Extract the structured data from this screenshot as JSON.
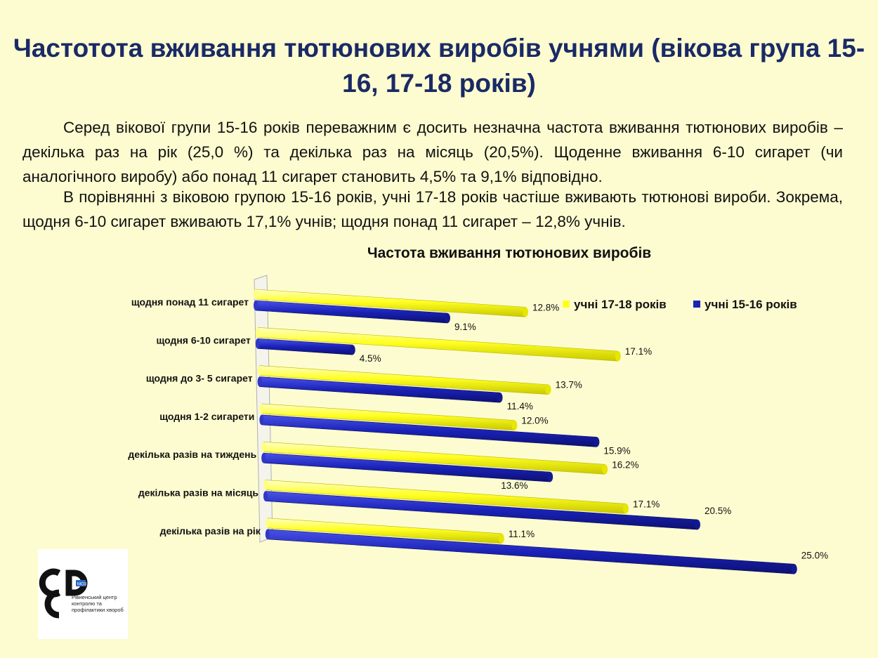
{
  "title": "Частотота вживання тютюнових виробів учнями (вікова група 15-16, 17-18 років)",
  "paragraphs": [
    "Серед вікової групи 15-16 років переважним є досить незначна частота вживання тютюнових виробів – декілька раз на рік (25,0 %) та декілька раз на місяць (20,5%). Щоденне вживання 6-10 сигарет (чи аналогічного виробу) або понад 11 сигарет становить 4,5% та 9,1% відповідно.",
    "В порівнянні з віковою групою 15-16 років, учні 17-18 років частіше вживають тютюнові вироби. Зокрема, щодня 6-10 сигарет вживають 17,1% учнів; щодня понад 11 сигарет – 12,8% учнів."
  ],
  "logo": {
    "text": "Рівненський центр контролю та профілактики хвороб",
    "badge": "МОЗ"
  },
  "colors": {
    "yellow": "#ffff22",
    "blue": "#1a22b8",
    "title": "#1a2a66"
  },
  "chart_data": {
    "type": "bar",
    "orientation": "horizontal",
    "title": "Частота вживання тютюнових виробів",
    "categories": [
      "щодня понад 11 сигарет",
      "щодня 6-10 сигарет",
      "щодня до 3- 5 сигарет",
      "щодня 1-2 сигарети",
      "декілька разів на тиждень",
      "декілька разів на місяць",
      "декілька разів на рік"
    ],
    "series": [
      {
        "name": "учні 17-18 років",
        "color": "#ffff22",
        "values": [
          12.8,
          17.1,
          13.7,
          12.0,
          16.2,
          17.1,
          11.1
        ],
        "labels": [
          "12.8%",
          "17.1%",
          "13.7%",
          "12.0%",
          "16.2%",
          "17.1%",
          "11.1%"
        ]
      },
      {
        "name": "учні 15-16 років",
        "color": "#1a22b8",
        "values": [
          9.1,
          4.5,
          11.4,
          15.9,
          13.6,
          20.5,
          25.0
        ],
        "labels": [
          "9.1%",
          "4.5%",
          "11.4%",
          "15.9%",
          "13.6%",
          "20.5%",
          "25.0%"
        ]
      }
    ],
    "unit": "%",
    "legend": "top-right",
    "grid": false
  }
}
